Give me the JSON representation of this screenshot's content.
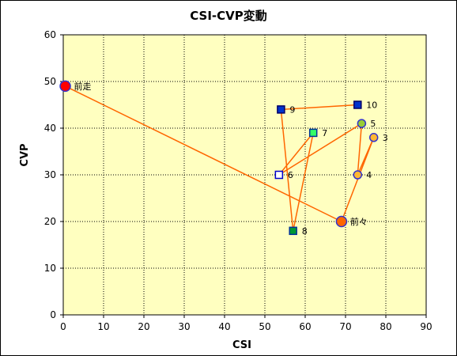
{
  "chart_data": {
    "type": "scatter",
    "title": "CSI-CVP変動",
    "xlabel": "CSI",
    "ylabel": "CVP",
    "xlim": [
      0,
      90
    ],
    "ylim": [
      0,
      60
    ],
    "xticks": [
      0,
      10,
      20,
      30,
      40,
      50,
      60,
      70,
      80,
      90
    ],
    "yticks": [
      0,
      10,
      20,
      30,
      40,
      50,
      60
    ],
    "grid": true,
    "plot_background": "#FFFFC0",
    "line_color": "#FF6600",
    "points": [
      {
        "label": "前走",
        "x": 0.5,
        "y": 49,
        "marker": "circle",
        "fill": "#FF0000",
        "stroke": "#3333CC"
      },
      {
        "label": "前々",
        "x": 69,
        "y": 20,
        "marker": "circle",
        "fill": "#FF6600",
        "stroke": "#3333CC"
      },
      {
        "label": "3",
        "x": 77,
        "y": 38,
        "marker": "circle",
        "fill": "#FFB732",
        "stroke": "#3333CC"
      },
      {
        "label": "4",
        "x": 73,
        "y": 30,
        "marker": "circle",
        "fill": "#FFB732",
        "stroke": "#3333CC"
      },
      {
        "label": "5",
        "x": 74,
        "y": 41,
        "marker": "circle",
        "fill": "#99CC33",
        "stroke": "#3333CC"
      },
      {
        "label": "6",
        "x": 53.5,
        "y": 30,
        "marker": "square",
        "fill": "#FFFFFF",
        "stroke": "#0000CC"
      },
      {
        "label": "7",
        "x": 62,
        "y": 39,
        "marker": "square",
        "fill": "#33FF66",
        "stroke": "#003399"
      },
      {
        "label": "8",
        "x": 57,
        "y": 18,
        "marker": "square",
        "fill": "#009933",
        "stroke": "#003399"
      },
      {
        "label": "9",
        "x": 54,
        "y": 44,
        "marker": "square",
        "fill": "#0033CC",
        "stroke": "#000066"
      },
      {
        "label": "10",
        "x": 73,
        "y": 45,
        "marker": "square",
        "fill": "#0033CC",
        "stroke": "#000066"
      }
    ],
    "path_order": [
      "前走",
      "前々",
      "3",
      "4",
      "5",
      "6",
      "7",
      "8",
      "9",
      "10"
    ]
  }
}
